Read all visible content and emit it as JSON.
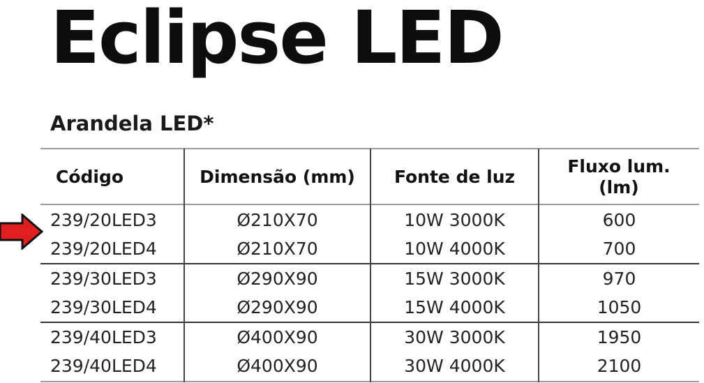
{
  "title": "Eclipse LED",
  "subtitle": "Arandela LED*",
  "table": {
    "headers": [
      "Código",
      "Dimensão (mm)",
      "Fonte de luz",
      "Fluxo lum. (lm)"
    ],
    "rows": [
      [
        "239/20LED3",
        "Ø210X70",
        "10W 3000K",
        "600"
      ],
      [
        "239/20LED4",
        "Ø210X70",
        "10W 4000K",
        "700"
      ],
      [
        "239/30LED3",
        "Ø290X90",
        "15W 3000K",
        "970"
      ],
      [
        "239/30LED4",
        "Ø290X90",
        "15W 4000K",
        "1050"
      ],
      [
        "239/40LED3",
        "Ø400X90",
        "30W 3000K",
        "1950"
      ],
      [
        "239/40LED4",
        "Ø400X90",
        "30W 4000K",
        "2100"
      ]
    ]
  },
  "pointer": {
    "icon": "right-arrow-icon",
    "color": "#e02020",
    "highlighted_row": "239/20LED3"
  }
}
